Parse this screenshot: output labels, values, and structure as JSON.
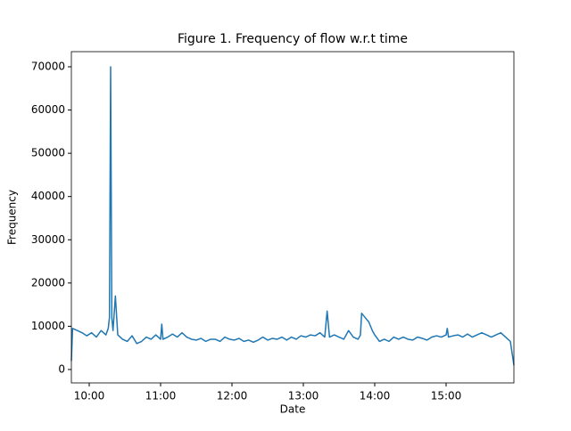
{
  "chart_data": {
    "type": "line",
    "title": "Figure 1. Frequency of flow w.r.t time",
    "x_label": "Date",
    "y_label": "Frequency",
    "color": "#1f77b4",
    "x": [
      "09:45",
      "09:46",
      "09:50",
      "09:54",
      "09:58",
      "10:02",
      "10:06",
      "10:10",
      "10:14",
      "10:16",
      "10:17",
      "10:18",
      "10:19",
      "10:20",
      "10:22",
      "10:24",
      "10:28",
      "10:32",
      "10:36",
      "10:40",
      "10:44",
      "10:48",
      "10:52",
      "10:56",
      "11:00",
      "11:01",
      "11:02",
      "11:06",
      "11:10",
      "11:14",
      "11:18",
      "11:22",
      "11:26",
      "11:30",
      "11:34",
      "11:38",
      "11:42",
      "11:46",
      "11:50",
      "11:54",
      "11:58",
      "12:02",
      "12:06",
      "12:10",
      "12:14",
      "12:18",
      "12:22",
      "12:26",
      "12:30",
      "12:34",
      "12:38",
      "12:42",
      "12:46",
      "12:50",
      "12:54",
      "12:58",
      "13:02",
      "13:06",
      "13:10",
      "13:14",
      "13:18",
      "13:20",
      "13:22",
      "13:26",
      "13:30",
      "13:34",
      "13:38",
      "13:42",
      "13:46",
      "13:48",
      "13:49",
      "13:52",
      "13:55",
      "13:58",
      "14:00",
      "14:04",
      "14:08",
      "14:12",
      "14:16",
      "14:20",
      "14:24",
      "14:28",
      "14:32",
      "14:36",
      "14:40",
      "14:44",
      "14:48",
      "14:52",
      "14:56",
      "15:00",
      "15:01",
      "15:02",
      "15:06",
      "15:10",
      "15:14",
      "15:18",
      "15:22",
      "15:26",
      "15:30",
      "15:34",
      "15:38",
      "15:42",
      "15:46",
      "15:50",
      "15:54",
      "15:57"
    ],
    "values": [
      2000,
      9500,
      9000,
      8500,
      7800,
      8500,
      7500,
      9000,
      8000,
      9500,
      12000,
      70000,
      12000,
      9000,
      17000,
      8000,
      7000,
      6500,
      7800,
      6000,
      6500,
      7500,
      7000,
      8000,
      7000,
      10500,
      7000,
      7500,
      8200,
      7500,
      8500,
      7500,
      7000,
      6800,
      7200,
      6500,
      7000,
      7000,
      6500,
      7500,
      7000,
      6800,
      7200,
      6500,
      6800,
      6300,
      6800,
      7500,
      6800,
      7200,
      7000,
      7500,
      6800,
      7500,
      7000,
      7800,
      7500,
      8000,
      7800,
      8500,
      7500,
      13500,
      7500,
      8000,
      7500,
      7000,
      9000,
      7500,
      7000,
      8000,
      13000,
      12000,
      11000,
      9000,
      8000,
      6500,
      7000,
      6500,
      7500,
      7000,
      7500,
      7000,
      6800,
      7500,
      7200,
      6800,
      7500,
      7800,
      7500,
      8000,
      9500,
      7500,
      7800,
      8000,
      7500,
      8200,
      7500,
      8000,
      8500,
      8000,
      7500,
      8000,
      8500,
      7500,
      6500,
      1000
    ],
    "xlim": [
      "09:45",
      "15:57"
    ],
    "xticks": [
      "10:00",
      "11:00",
      "12:00",
      "13:00",
      "14:00",
      "15:00"
    ],
    "ylim": [
      -3100,
      73500
    ],
    "yticks": [
      0,
      10000,
      20000,
      30000,
      40000,
      50000,
      60000,
      70000
    ]
  }
}
